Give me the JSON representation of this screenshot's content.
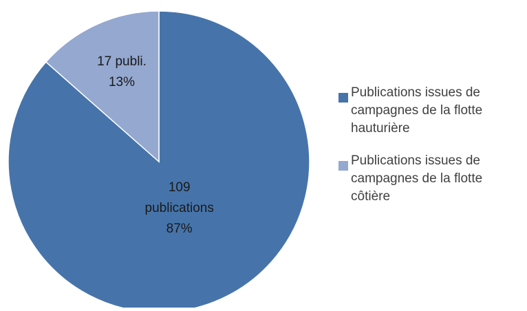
{
  "chart_data": {
    "type": "pie",
    "title": "",
    "start_angle_deg": 0,
    "direction": "clockwise",
    "slices": [
      {
        "name": "Publications issues de campagnes de la flotte hauturière",
        "value": 109,
        "percent": 87,
        "label_lines": [
          "109",
          "publications",
          "87%"
        ],
        "color": "#4674AA"
      },
      {
        "name": "Publications issues de campagnes de la flotte côtière",
        "value": 17,
        "percent": 13,
        "label_lines": [
          "17 publi.",
          "13%"
        ],
        "color": "#94A8D0"
      }
    ],
    "legend": {
      "placement": "right"
    }
  }
}
